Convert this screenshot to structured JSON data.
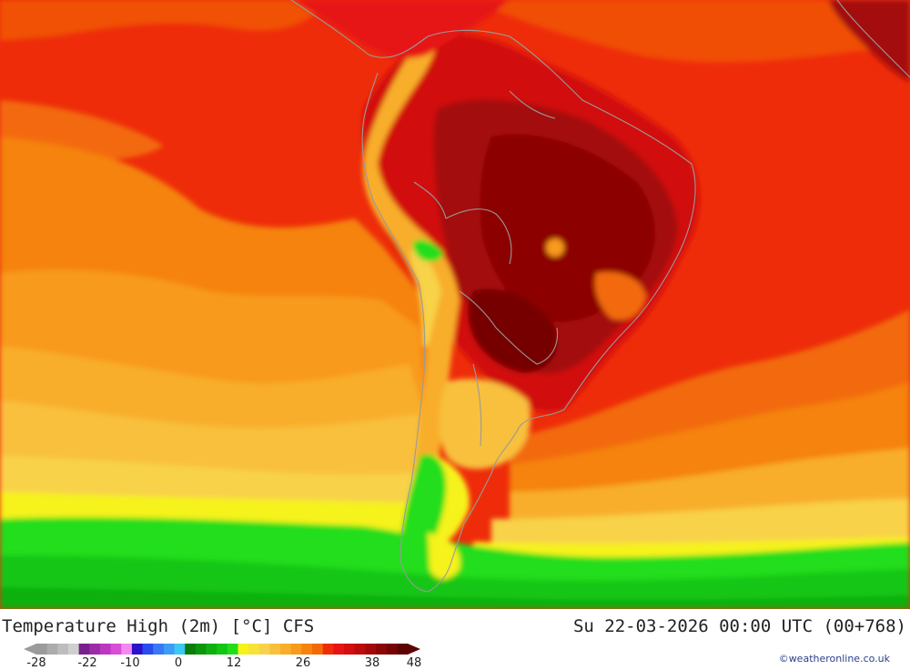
{
  "title": "Temperature High (2m) [°C] CFS",
  "datetime": "Su 22-03-2026 00:00 UTC (00+768)",
  "credit": "©weatheronline.co.uk",
  "legend": {
    "ticks": [
      "-28",
      "-22",
      "-10",
      "0",
      "12",
      "26",
      "38",
      "48"
    ],
    "colors": [
      "#9b9b9b",
      "#acacac",
      "#bdbdbd",
      "#cfcfcf",
      "#7a1e8e",
      "#9b2ba6",
      "#bb38c0",
      "#d94ed6",
      "#f08af0",
      "#2a12c8",
      "#2b4bf0",
      "#3b78f5",
      "#3d9cf5",
      "#3dc8f3",
      "#0a7d0a",
      "#0c960c",
      "#10b010",
      "#14c614",
      "#22de1a",
      "#f6f21a",
      "#f8e23a",
      "#f8d24a",
      "#f8c03c",
      "#f8ae2a",
      "#f89a1a",
      "#f5830e",
      "#f26a08",
      "#ee2c0a",
      "#e61414",
      "#d20e0e",
      "#bb0b0b",
      "#a40808",
      "#8c0606",
      "#760404",
      "#5e0303"
    ]
  }
}
